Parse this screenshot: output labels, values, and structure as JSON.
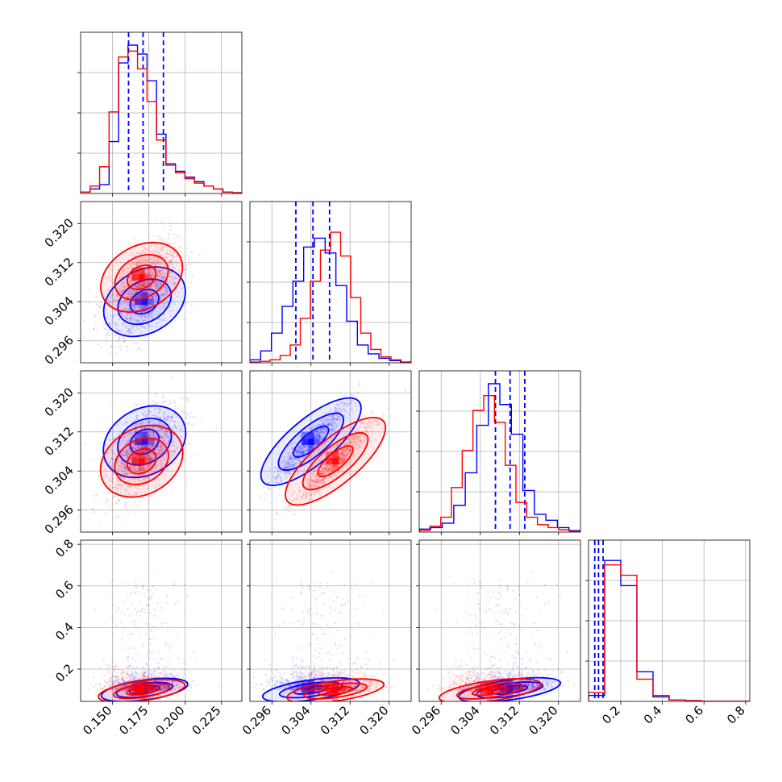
{
  "colors": {
    "series_a": "#0000ff",
    "series_b": "#ff0000",
    "grid": "#b0b0b0",
    "background": "#ffffff"
  },
  "chart_data": {
    "type": "corner",
    "parameters": [
      "",
      "",
      "",
      ""
    ],
    "ranges": [
      [
        0.128,
        0.239
      ],
      [
        0.2915,
        0.3245
      ],
      [
        0.2915,
        0.3245
      ],
      [
        0.045,
        0.82
      ]
    ],
    "grid": true,
    "series": [
      {
        "color": "#0000ff",
        "quantile_lines": [
          [
            0.161,
            0.171,
            0.185
          ],
          [
            0.3009,
            0.3044,
            0.3078
          ],
          [
            0.3071,
            0.3101,
            0.3131
          ],
          [
            0.075,
            0.093,
            0.115
          ]
        ],
        "means": [
          0.172,
          0.304,
          0.31,
          0.1
        ],
        "hist1d": [
          [
            0.01,
            0.03,
            0.06,
            0.35,
            0.88,
            1.0,
            0.94,
            0.76,
            0.4,
            0.2,
            0.15,
            0.11,
            0.08,
            0.05,
            0.03,
            0.01,
            0.005
          ],
          [
            0.02,
            0.08,
            0.2,
            0.38,
            0.55,
            0.78,
            0.84,
            0.74,
            0.52,
            0.28,
            0.12,
            0.06,
            0.03,
            0.015,
            0.005
          ],
          [
            0.02,
            0.03,
            0.06,
            0.18,
            0.4,
            0.72,
            1.0,
            0.86,
            0.66,
            0.28,
            0.12,
            0.08,
            0.03,
            0.01
          ],
          [
            0.04,
            0.95,
            0.78,
            0.2,
            0.03,
            0.01,
            0.005,
            0.0,
            0.0,
            0.0
          ]
        ]
      },
      {
        "color": "#ff0000",
        "quantile_lines": [],
        "means": [
          0.17,
          0.309,
          0.306,
          0.095
        ],
        "hist1d": [
          [
            0.01,
            0.05,
            0.18,
            0.55,
            0.92,
            0.96,
            0.84,
            0.62,
            0.36,
            0.19,
            0.14,
            0.1,
            0.07,
            0.05,
            0.03,
            0.01,
            0.005
          ],
          [
            0.005,
            0.01,
            0.02,
            0.05,
            0.12,
            0.3,
            0.55,
            0.76,
            0.88,
            0.72,
            0.44,
            0.2,
            0.09,
            0.04,
            0.02,
            0.005
          ],
          [
            0.01,
            0.04,
            0.1,
            0.3,
            0.55,
            0.82,
            0.92,
            0.74,
            0.45,
            0.2,
            0.1,
            0.05,
            0.03,
            0.015,
            0.005
          ],
          [
            0.06,
            0.92,
            0.85,
            0.15,
            0.04,
            0.01,
            0.005,
            0.0,
            0.0,
            0.0
          ]
        ]
      }
    ],
    "xtick_labels": [
      [
        "0.150",
        "0.175",
        "0.200",
        "0.225"
      ],
      [
        "0.296",
        "0.304",
        "0.312",
        "0.320"
      ],
      [
        "0.296",
        "0.304",
        "0.312",
        "0.320"
      ],
      [
        "0.2",
        "0.4",
        "0.6",
        "0.8"
      ]
    ],
    "ytick_labels": [
      [],
      [
        "0.296",
        "0.304",
        "0.312",
        "0.320"
      ],
      [
        "0.296",
        "0.304",
        "0.312",
        "0.320"
      ],
      [
        "0.2",
        "0.4",
        "0.6",
        "0.8"
      ]
    ]
  }
}
